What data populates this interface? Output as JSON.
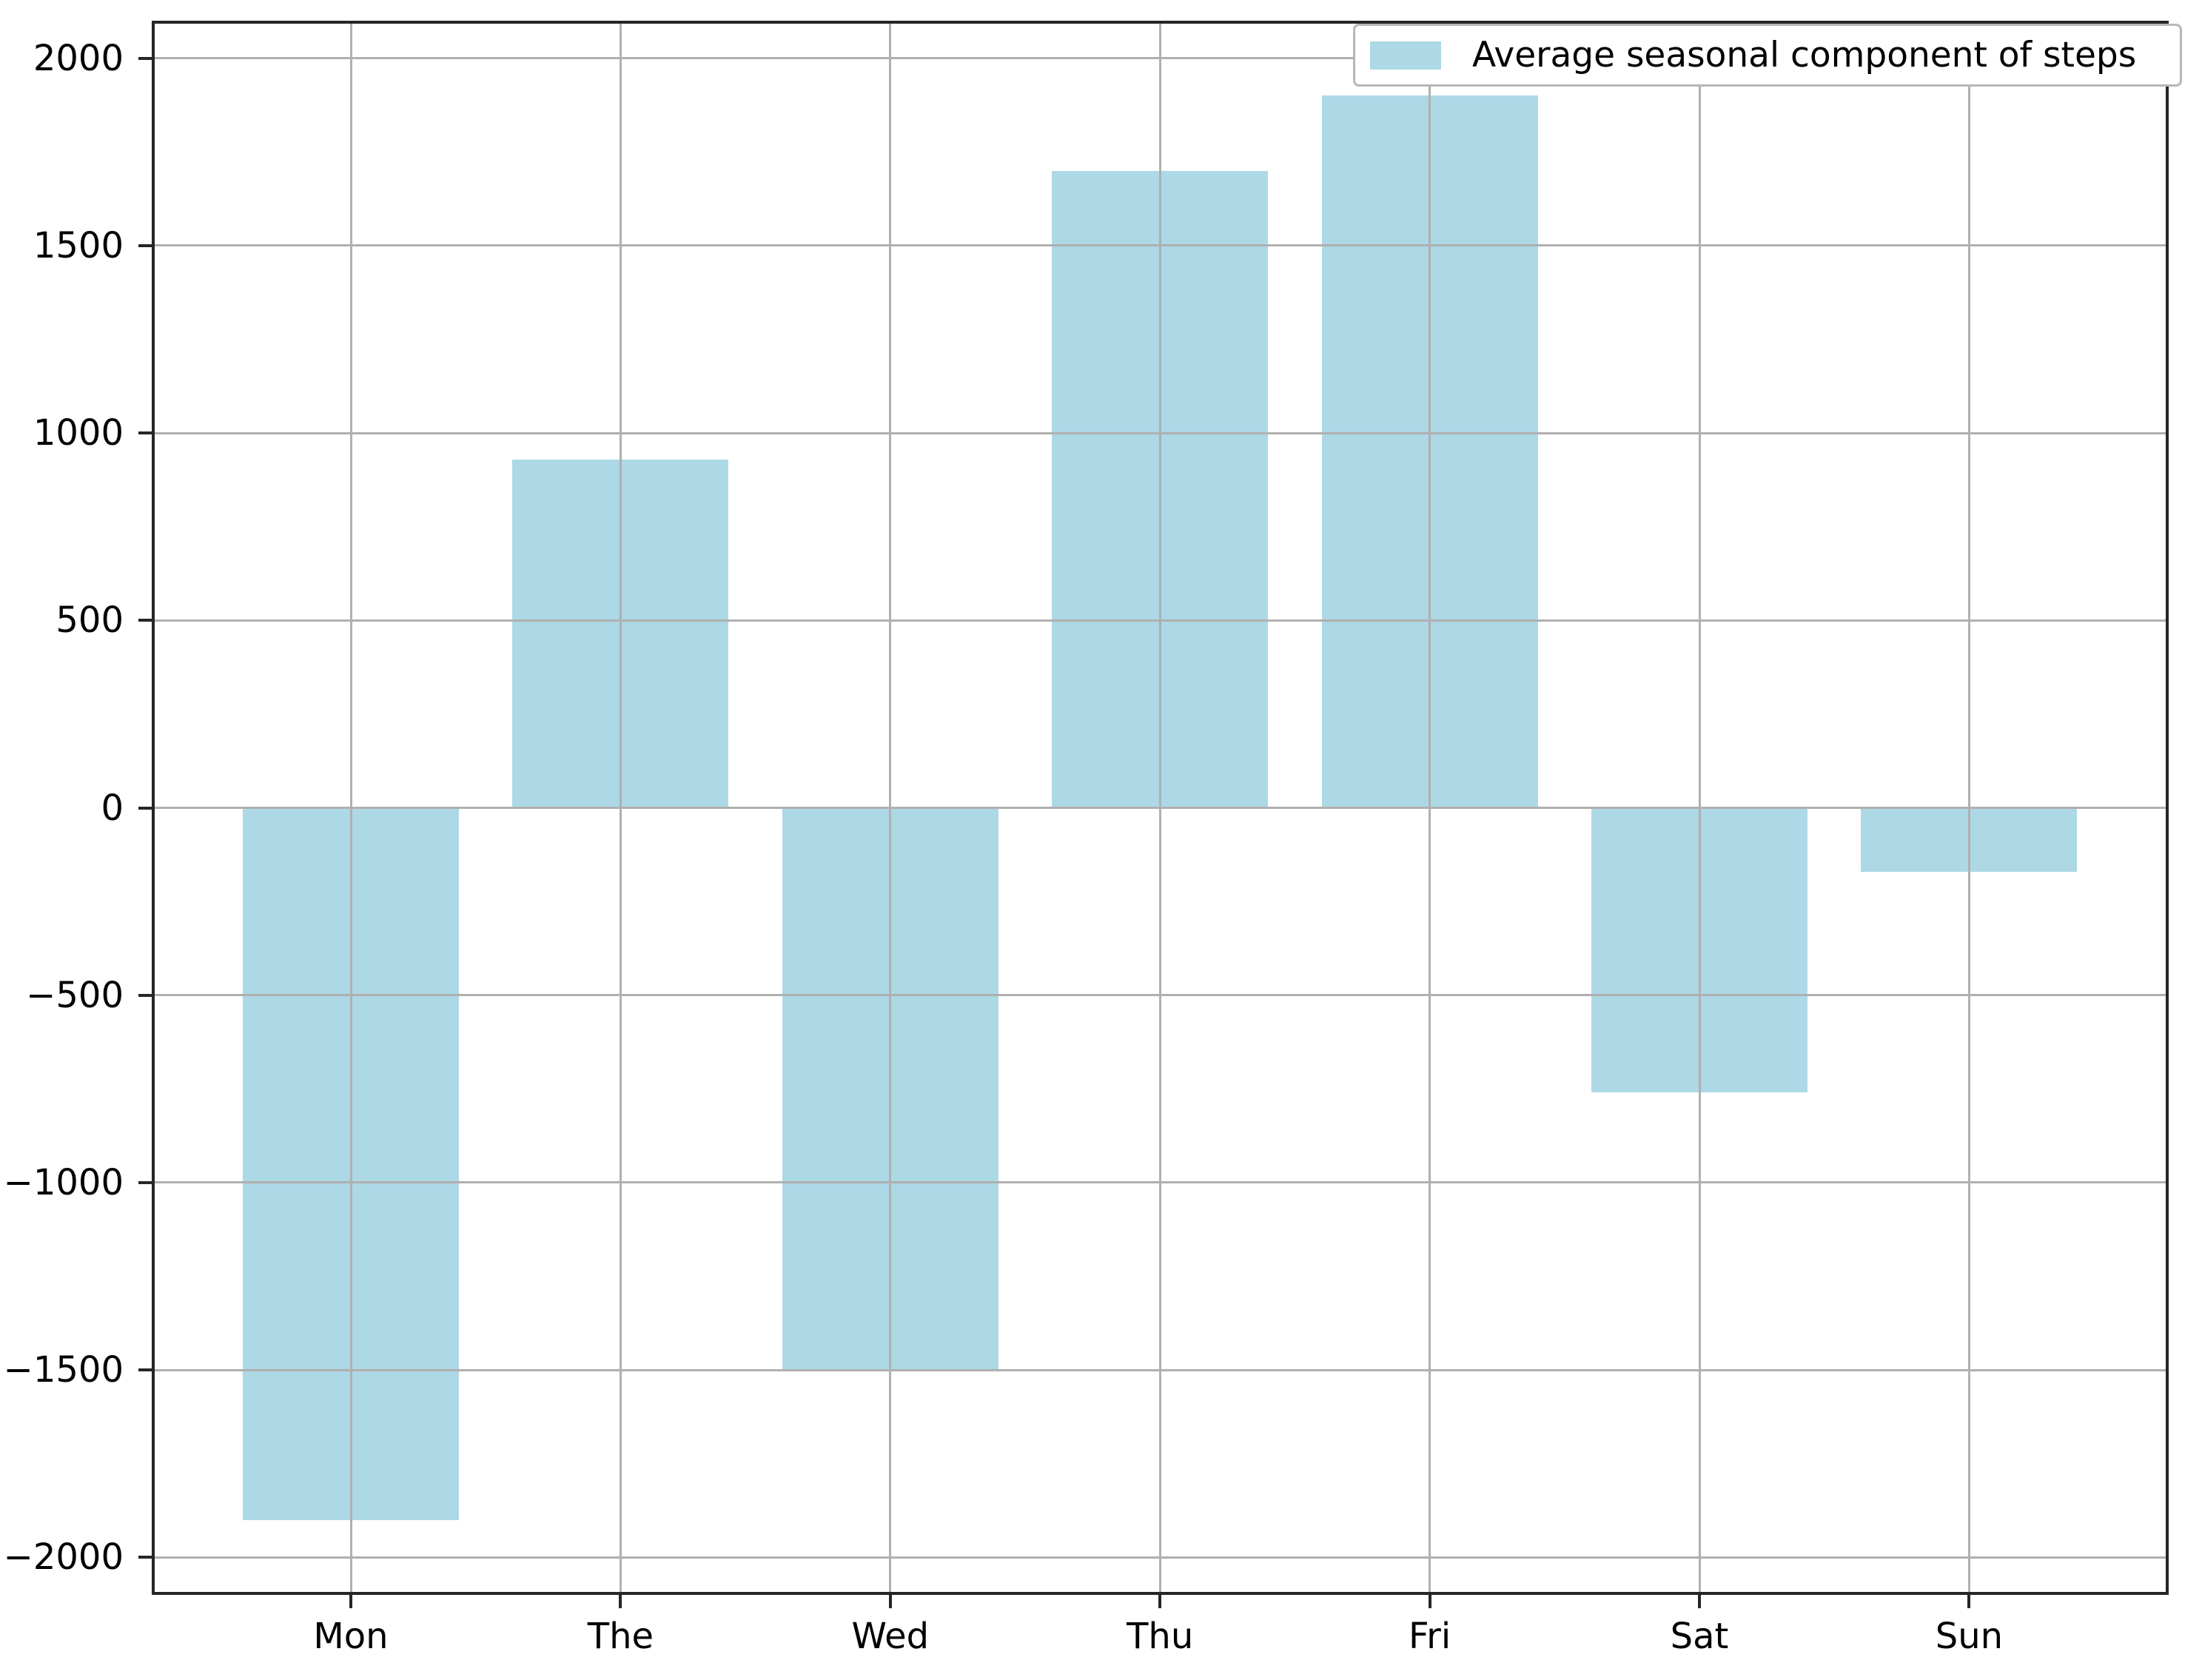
{
  "chart_data": {
    "type": "bar",
    "title": "",
    "xlabel": "",
    "ylabel": "",
    "categories": [
      "Mon",
      "The",
      "Wed",
      "Thu",
      "Fri",
      "Sat",
      "Sun"
    ],
    "values": [
      -1900,
      930,
      -1500,
      1700,
      1900,
      -760,
      -170
    ],
    "series": [
      {
        "name": "Average seasonal component of steps",
        "values": [
          -1900,
          930,
          -1500,
          1700,
          1900,
          -760,
          -170
        ]
      }
    ],
    "legend": {
      "label": "Average seasonal component of steps",
      "position": "upper right"
    },
    "ylim": [
      -2100,
      2100
    ],
    "yticks": [
      -2000,
      -1500,
      -1000,
      -500,
      0,
      500,
      1000,
      1500,
      2000
    ],
    "grid": true,
    "colors": {
      "bar": "#ADD8E6",
      "grid": "#B0B0B0",
      "spine": "#262626",
      "tick_label": "#000000",
      "legend_border": "#B7B7B7",
      "background": "#FFFFFF"
    }
  }
}
